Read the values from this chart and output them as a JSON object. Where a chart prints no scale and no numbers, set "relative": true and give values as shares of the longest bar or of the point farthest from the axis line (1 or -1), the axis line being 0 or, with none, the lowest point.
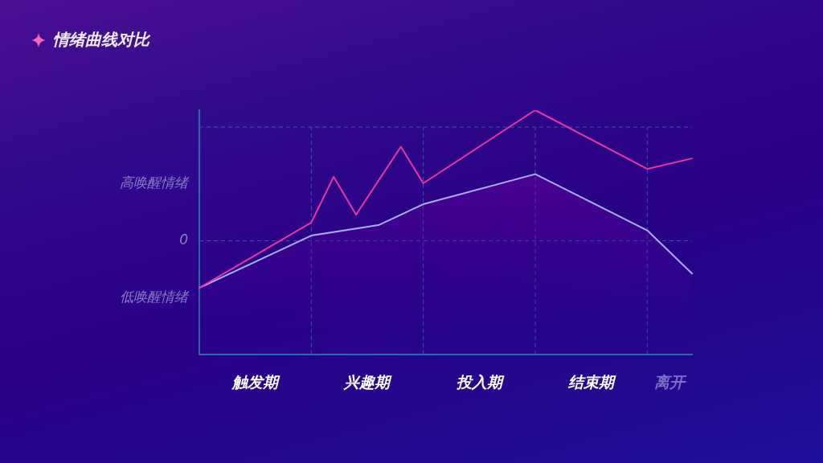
{
  "chart_data": {
    "type": "line",
    "title": "情绪曲线对比",
    "categories": [
      null,
      null,
      null,
      null,
      null,
      "触发期",
      null,
      null,
      null,
      null,
      null,
      null,
      null,
      null,
      null,
      "兴趣期",
      null,
      null,
      null,
      null,
      null,
      null,
      null,
      null,
      null,
      "投入期",
      null,
      null,
      null,
      null,
      null,
      null,
      null,
      null,
      null,
      "结束期",
      null,
      null,
      null,
      null,
      null,
      null,
      "离开",
      null,
      null
    ],
    "relative": true,
    "series": [
      {
        "color": "#e8379f",
        "values": [
          -0.36,
          null,
          null,
          null,
          null,
          null,
          null,
          null,
          null,
          null,
          0.14,
          null,
          0.49,
          null,
          0.2,
          null,
          null,
          null,
          0.72,
          null,
          0.44,
          null,
          null,
          null,
          null,
          null,
          null,
          null,
          null,
          null,
          1,
          null,
          null,
          null,
          null,
          null,
          null,
          null,
          null,
          null,
          0.55,
          null,
          null,
          null,
          0.63
        ]
      },
      {
        "type": "area",
        "color": "#a6b2f4",
        "values": [
          -0.36,
          null,
          null,
          null,
          null,
          null,
          null,
          null,
          null,
          null,
          0.04,
          null,
          null,
          null,
          null,
          null,
          0.12,
          null,
          null,
          null,
          0.28,
          null,
          null,
          null,
          null,
          null,
          null,
          null,
          null,
          null,
          0.51,
          null,
          null,
          null,
          null,
          null,
          null,
          null,
          null,
          null,
          0.08,
          null,
          null,
          null,
          -0.25
        ]
      }
    ],
    "ref_lines": [
      {
        "axis": "y",
        "value": 0,
        "label": "0",
        "line_style": "dashed",
        "color": "#3a5a9e"
      },
      {
        "axis": "y",
        "value": 0.87,
        "line_style": "dashed",
        "color": "#3a5a9e"
      }
    ],
    "annotations": [
      "高唤醒情绪",
      "低唤醒情绪"
    ],
    "grid": "x",
    "legend": false,
    "marker": "none",
    "line_style": "solid"
  }
}
